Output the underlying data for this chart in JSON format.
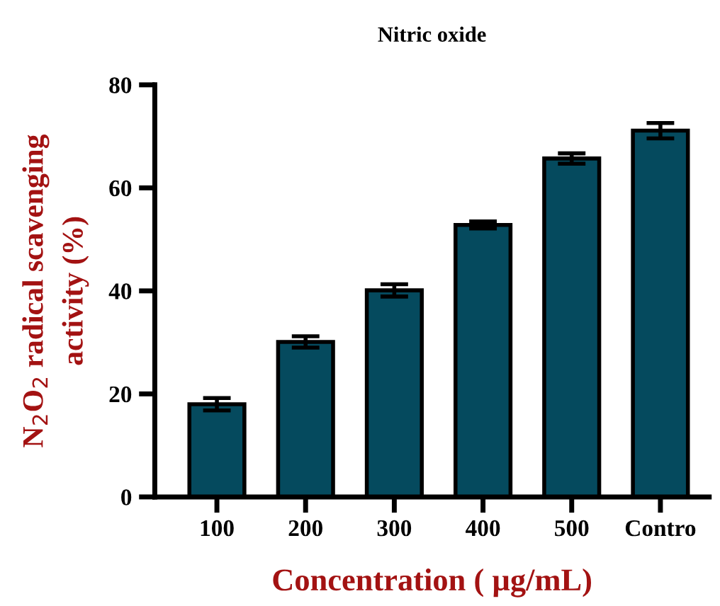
{
  "chart_data": {
    "type": "bar",
    "title": "Nitric oxide",
    "xlabel": "Concentration ( µg/mL)",
    "ylabel": "N$_{2}$O$_{2}$ radical scavenging\nactivity (%)",
    "categories": [
      "100",
      "200",
      "300",
      "400",
      "500",
      "Contro"
    ],
    "values": [
      18.0,
      30.1,
      40.1,
      52.8,
      65.7,
      71.1
    ],
    "errors": [
      1.2,
      1.1,
      1.2,
      0.7,
      1.0,
      1.5
    ],
    "color": "#054a5e",
    "ylim": [
      0,
      80
    ],
    "yticks": [
      0,
      20,
      40,
      60,
      80
    ],
    "grid": false
  }
}
